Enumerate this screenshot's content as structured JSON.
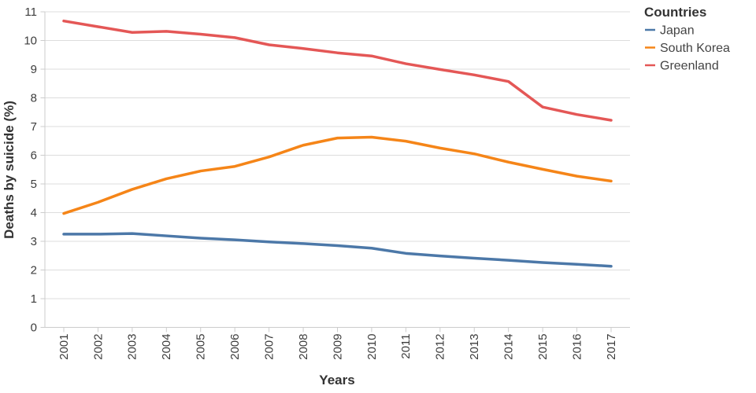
{
  "chart_data": {
    "type": "line",
    "title": "",
    "xlabel": "Years",
    "ylabel": "Deaths by suicide (%)",
    "legend_title": "Countries",
    "legend_position": "right",
    "grid": true,
    "x": [
      2001,
      2002,
      2003,
      2004,
      2005,
      2006,
      2007,
      2008,
      2009,
      2010,
      2011,
      2012,
      2013,
      2014,
      2015,
      2016,
      2017
    ],
    "ylim": [
      0,
      11
    ],
    "yticks": [
      0,
      1,
      2,
      3,
      4,
      5,
      6,
      7,
      8,
      9,
      10,
      11
    ],
    "series": [
      {
        "name": "Japan",
        "color": "#4c78a8",
        "values": [
          3.25,
          3.25,
          3.27,
          3.19,
          3.11,
          3.05,
          2.98,
          2.92,
          2.85,
          2.76,
          2.58,
          2.49,
          2.41,
          2.34,
          2.26,
          2.2,
          2.13
        ]
      },
      {
        "name": "South Korea",
        "color": "#f58518",
        "values": [
          3.97,
          4.36,
          4.81,
          5.18,
          5.45,
          5.61,
          5.94,
          6.35,
          6.6,
          6.63,
          6.49,
          6.25,
          6.05,
          5.76,
          5.51,
          5.27,
          5.1
        ]
      },
      {
        "name": "Greenland",
        "color": "#e45756",
        "values": [
          10.68,
          10.48,
          10.28,
          10.32,
          10.22,
          10.1,
          9.85,
          9.72,
          9.57,
          9.46,
          9.19,
          8.99,
          8.8,
          8.57,
          7.68,
          7.42,
          7.22
        ]
      }
    ],
    "style": {
      "grid_color": "#dddddd",
      "domain_color": "#cccccc",
      "tick_color": "#cccccc",
      "line_width": 3.5
    }
  }
}
